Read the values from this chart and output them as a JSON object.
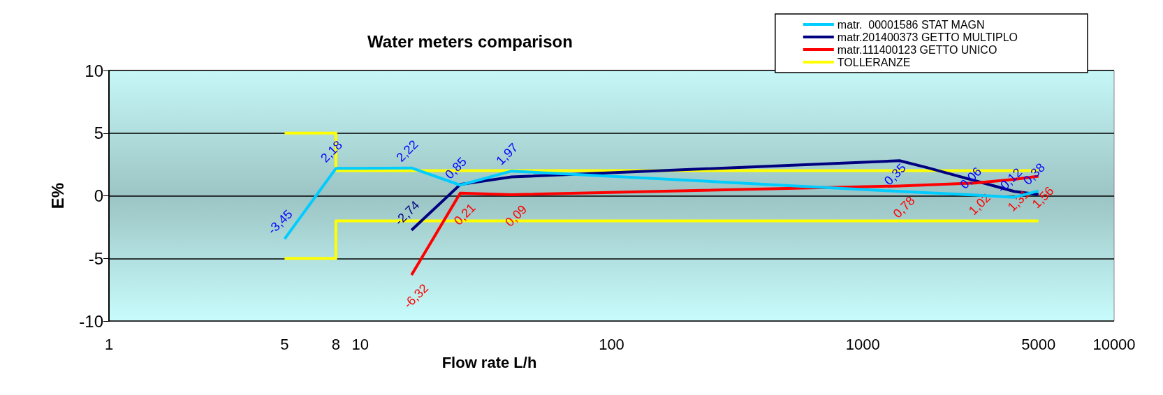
{
  "chart_data": {
    "type": "line",
    "title": "Water meters comparison",
    "xlabel": "Flow rate L/h",
    "ylabel": "E%",
    "log": "x",
    "xlim": [
      1,
      10000
    ],
    "xticks": [
      1,
      5,
      8,
      10,
      100,
      1000,
      5000,
      10000
    ],
    "ylim": [
      -10,
      10
    ],
    "yticks": [
      -10,
      -5,
      0,
      5,
      10
    ],
    "grid": "y",
    "legend": "top right",
    "marker": "none",
    "series": [
      {
        "name": "matr.  00001586 STAT MAGN",
        "color": "#00ccff",
        "x": [
          5,
          8,
          16,
          25,
          40,
          1400,
          2800,
          4000,
          5000
        ],
        "values": [
          -3.45,
          2.18,
          2.22,
          0.85,
          1.97,
          0.35,
          0.06,
          -0.12,
          0.38
        ],
        "value_labels": [
          "-3,45",
          "2,18",
          "2,22",
          "0,85",
          "1,97",
          "0,35",
          "0,06",
          "-0,12",
          "0,38"
        ]
      },
      {
        "name": "matr.201400373 GETTO MULTIPLO",
        "color": "#000080",
        "x": [
          16,
          25,
          40,
          1400,
          1800,
          4000,
          5000
        ],
        "values": [
          -2.74,
          0.9,
          1.5,
          2.8,
          2.25,
          0.35,
          0.1
        ],
        "value_labels": [
          "-2,74",
          null,
          null,
          null,
          null,
          null,
          null
        ]
      },
      {
        "name": "matr.111400123 GETTO UNICO",
        "color": "#ff0000",
        "x": [
          16,
          25,
          40,
          1400,
          2800,
          4000,
          5000
        ],
        "values": [
          -6.32,
          0.21,
          0.09,
          0.78,
          1.02,
          1.31,
          1.56
        ],
        "value_labels": [
          "-6,32",
          "0,21",
          "0,09",
          "0,78",
          "1,02",
          "1,31",
          "1,56"
        ]
      },
      {
        "name": "TOLLERANZE",
        "color": "#ffff00",
        "x": [
          5,
          8,
          8,
          5000
        ],
        "values": [
          5,
          5,
          2,
          2
        ]
      },
      {
        "color": "#ffff00",
        "x": [
          5,
          8,
          8,
          5000
        ],
        "values": [
          -5,
          -5,
          -2,
          -2
        ]
      }
    ]
  }
}
